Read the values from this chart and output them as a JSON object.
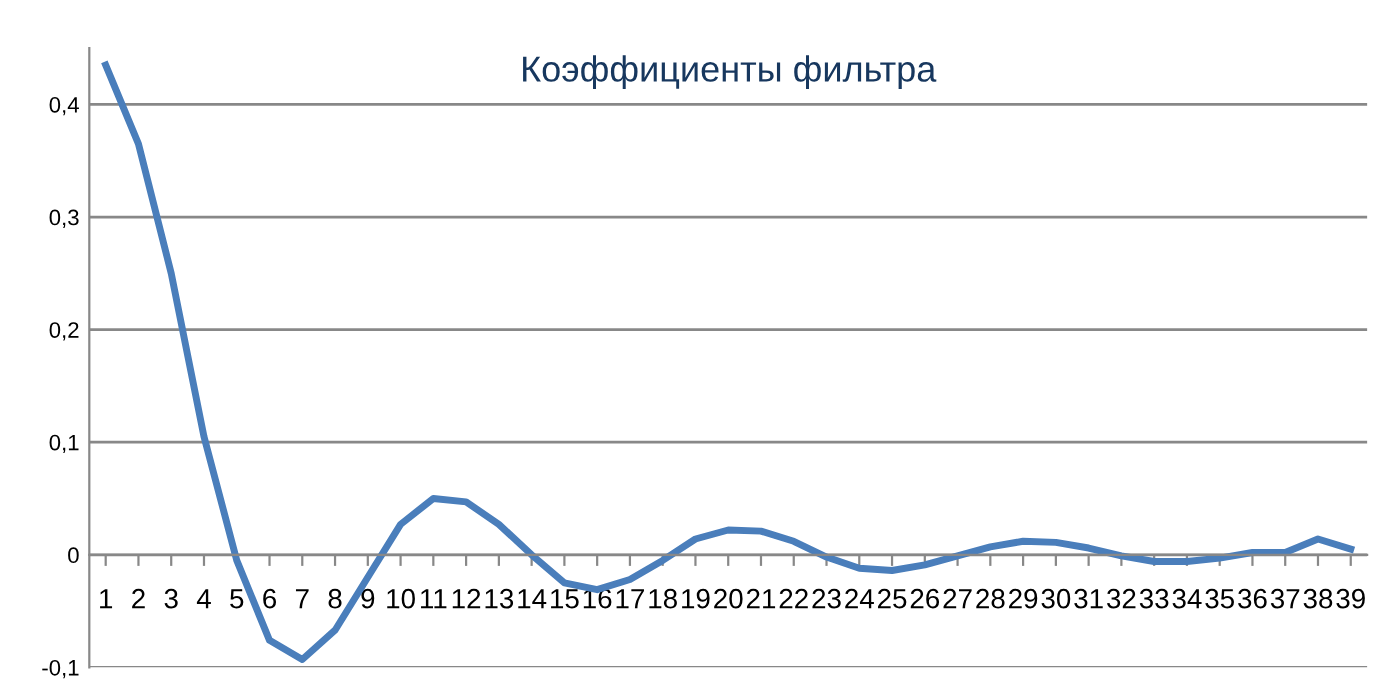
{
  "chart_data": {
    "type": "line",
    "title": "Коэффициенты фильтра",
    "categories": [
      "1",
      "2",
      "3",
      "4",
      "5",
      "6",
      "7",
      "8",
      "9",
      "10",
      "11",
      "12",
      "13",
      "14",
      "15",
      "16",
      "17",
      "18",
      "19",
      "20",
      "21",
      "22",
      "23",
      "24",
      "25",
      "26",
      "27",
      "28",
      "29",
      "30",
      "31",
      "32",
      "33",
      "34",
      "35",
      "36",
      "37",
      "38",
      "39"
    ],
    "series": [
      {
        "color": "#4a7ebb",
        "values": [
          0.435,
          0.365,
          0.25,
          0.105,
          -0.005,
          -0.076,
          -0.093,
          -0.067,
          -0.02,
          0.027,
          0.05,
          0.047,
          0.027,
          0.0,
          -0.025,
          -0.031,
          -0.022,
          -0.005,
          0.014,
          0.022,
          0.021,
          0.012,
          -0.002,
          -0.012,
          -0.014,
          -0.009,
          -0.001,
          0.007,
          0.012,
          0.011,
          0.006,
          -0.001,
          -0.006,
          -0.006,
          -0.003,
          0.002,
          0.002,
          0.014,
          0.005
        ]
      }
    ],
    "ylim": [
      -0.1,
      0.45
    ],
    "yticks": [
      {
        "value": -0.1,
        "label": "-0,1"
      },
      0,
      {
        "value": 0.1,
        "label": "0,1"
      },
      {
        "value": 0.2,
        "label": "0,2"
      },
      {
        "value": 0.3,
        "label": "0,3"
      },
      {
        "value": 0.4,
        "label": "0,4"
      }
    ],
    "grid": "y",
    "legend": false,
    "marker": "none",
    "line_style": "solid"
  }
}
